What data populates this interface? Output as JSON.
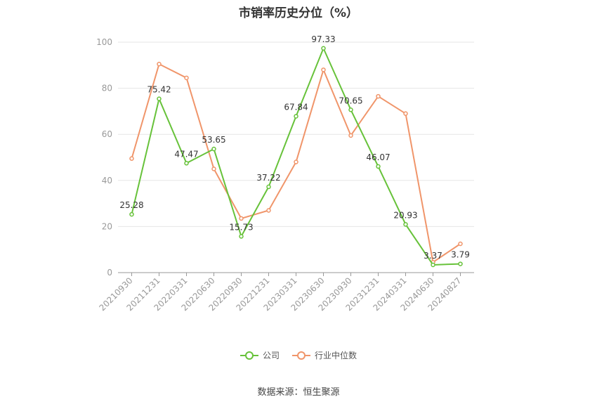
{
  "title": "市销率历史分位（%）",
  "source": "数据来源：恒生聚源",
  "legend": [
    {
      "label": "公司",
      "color": "#67c23a"
    },
    {
      "label": "行业中位数",
      "color": "#f0956a"
    }
  ],
  "chart_data": {
    "type": "line",
    "title": "市销率历史分位（%）",
    "xlabel": "",
    "ylabel": "",
    "ylim": [
      0,
      100
    ],
    "yticks": [
      0,
      20,
      40,
      60,
      80,
      100
    ],
    "grid": true,
    "legend_position": "bottom",
    "categories": [
      "20210930",
      "20211231",
      "20220331",
      "20220630",
      "20220930",
      "20221231",
      "20230331",
      "20230630",
      "20230930",
      "20231231",
      "20240331",
      "20240630",
      "20240827"
    ],
    "series": [
      {
        "name": "公司",
        "color": "#67c23a",
        "labeled": true,
        "values": [
          25.28,
          75.42,
          47.47,
          53.65,
          15.73,
          37.22,
          67.84,
          97.33,
          70.65,
          46.07,
          20.93,
          3.37,
          3.79
        ]
      },
      {
        "name": "行业中位数",
        "color": "#f0956a",
        "labeled": false,
        "values": [
          49.5,
          90.5,
          84.5,
          45.0,
          23.5,
          27.0,
          48.0,
          88.0,
          59.5,
          76.5,
          69.0,
          4.5,
          12.5
        ]
      }
    ]
  }
}
